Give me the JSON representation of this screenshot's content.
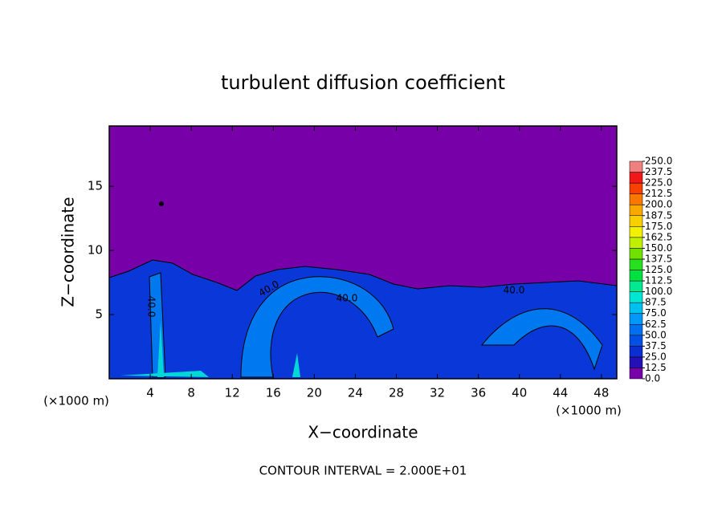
{
  "chart_data": {
    "type": "contourf",
    "title": "turbulent diffusion coefficient",
    "xlabel": "X−coordinate",
    "ylabel": "Z−coordinate",
    "x_unit": "(×1000 m)",
    "x_unit_right": "(×1000 m)",
    "note": "CONTOUR INTERVAL = 2.000E+01",
    "xlim": [
      0,
      49.5
    ],
    "ylim": [
      0,
      19.7
    ],
    "xticks": [
      4,
      8,
      12,
      16,
      20,
      24,
      28,
      32,
      36,
      40,
      44,
      48
    ],
    "yticks": [
      5,
      10,
      15
    ],
    "contour_labels": [
      "40.0",
      "40.0",
      "40.0",
      "40.0"
    ],
    "colorbar": {
      "ticks": [
        {
          "value": 0,
          "label": "0.0"
        },
        {
          "value": 12.5,
          "label": "12.5"
        },
        {
          "value": 25,
          "label": "25.0"
        },
        {
          "value": 37.5,
          "label": "37.5"
        },
        {
          "value": 50,
          "label": "50.0"
        },
        {
          "value": 62.5,
          "label": "62.5"
        },
        {
          "value": 75,
          "label": "75.0"
        },
        {
          "value": 87.5,
          "label": "87.5"
        },
        {
          "value": 100,
          "label": "100.0"
        },
        {
          "value": 112.5,
          "label": "112.5"
        },
        {
          "value": 125,
          "label": "125.0"
        },
        {
          "value": 137.5,
          "label": "137.5"
        },
        {
          "value": 150,
          "label": "150.0"
        },
        {
          "value": 162.5,
          "label": "162.5"
        },
        {
          "value": 175,
          "label": "175.0"
        },
        {
          "value": 187.5,
          "label": "187.5"
        },
        {
          "value": 200,
          "label": "200.0"
        },
        {
          "value": 212.5,
          "label": "212.5"
        },
        {
          "value": 225,
          "label": "225.0"
        },
        {
          "value": 237.5,
          "label": "237.5"
        },
        {
          "value": 250,
          "label": "250.0"
        }
      ],
      "colors": [
        "#7800a8",
        "#2410b4",
        "#0a2ed0",
        "#0050e4",
        "#0070f0",
        "#0098f8",
        "#00c0f0",
        "#00e6d2",
        "#00e890",
        "#00e040",
        "#28e020",
        "#70e000",
        "#c0f000",
        "#f0f000",
        "#f8d000",
        "#f8a800",
        "#f87800",
        "#f84000",
        "#f01818",
        "#f08080"
      ]
    }
  }
}
